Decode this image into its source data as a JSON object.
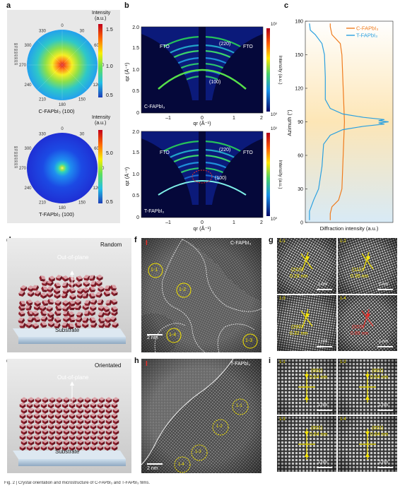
{
  "panel_labels": {
    "a": "a",
    "b": "b",
    "c": "c",
    "d": "d",
    "e": "e",
    "f": "f",
    "g": "g",
    "h": "h",
    "i": "i"
  },
  "panel_a": {
    "angles": [
      "0",
      "30",
      "60",
      "90",
      "120",
      "150",
      "180",
      "210",
      "240",
      "270",
      "300",
      "330"
    ],
    "radial_ticks": [
      "80",
      "70",
      "60",
      "50",
      "40",
      "30",
      "20",
      "10"
    ],
    "top": {
      "caption": "C-FAPbI₃ (100)",
      "cbar_title": "Intensity",
      "cbar_unit": "(a.u.)",
      "cbar_ticks": [
        "1.5",
        "1.0",
        "0.5"
      ]
    },
    "bottom": {
      "caption": "T-FAPbI₃ (100)",
      "cbar_title": "Intensity",
      "cbar_unit": "(a.u.)",
      "cbar_ticks": [
        "5.0",
        "0.5"
      ]
    }
  },
  "panel_b": {
    "ylabel": "qz (Å⁻¹)",
    "xlabel": "qr (Å⁻¹)",
    "yticks": [
      "0",
      "0.5",
      "1.0",
      "1.5",
      "2.0"
    ],
    "xticks": [
      "–1",
      "0",
      "1",
      "2"
    ],
    "cbar_label": "Intensity (a.u.)",
    "cbar_top": "10³",
    "cbar_bottom": "10⁰",
    "top": {
      "sample": "C-FAPbI₃",
      "ring_labels": [
        "FTO",
        "(220)",
        "FTO",
        "(100)"
      ]
    },
    "bottom": {
      "sample": "T-FAPbI₃",
      "ring_labels": [
        "FTO",
        "(220)",
        "FTO",
        "(100)"
      ]
    }
  },
  "chart_data": {
    "type": "line",
    "xlabel": "Diffraction intensity (a.u.)",
    "ylabel": "Azimuth (°)",
    "ylim": [
      0,
      180
    ],
    "yticks": [
      0,
      30,
      60,
      90,
      120,
      150,
      180
    ],
    "legend_position": "top-right",
    "series": [
      {
        "name": "C-FAPbI₃",
        "color": "#f07c1e",
        "points": [
          [
            0.3,
            2
          ],
          [
            0.3,
            8
          ],
          [
            0.32,
            14
          ],
          [
            0.4,
            20
          ],
          [
            0.44,
            30
          ],
          [
            0.45,
            50
          ],
          [
            0.46,
            70
          ],
          [
            0.47,
            90
          ],
          [
            0.46,
            110
          ],
          [
            0.45,
            130
          ],
          [
            0.44,
            150
          ],
          [
            0.42,
            160
          ],
          [
            0.32,
            168
          ],
          [
            0.3,
            175
          ],
          [
            0.3,
            178
          ]
        ]
      },
      {
        "name": "T-FAPbI₃",
        "color": "#2aa0e0",
        "points": [
          [
            0.05,
            2
          ],
          [
            0.05,
            10
          ],
          [
            0.1,
            20
          ],
          [
            0.16,
            30
          ],
          [
            0.2,
            50
          ],
          [
            0.22,
            70
          ],
          [
            0.3,
            78
          ],
          [
            0.45,
            83
          ],
          [
            0.7,
            86
          ],
          [
            0.95,
            88
          ],
          [
            0.88,
            89
          ],
          [
            1.0,
            90
          ],
          [
            0.88,
            91
          ],
          [
            0.95,
            92
          ],
          [
            0.7,
            94
          ],
          [
            0.45,
            97
          ],
          [
            0.3,
            102
          ],
          [
            0.24,
            110
          ],
          [
            0.24,
            130
          ],
          [
            0.23,
            150
          ],
          [
            0.2,
            160
          ],
          [
            0.12,
            168
          ],
          [
            0.06,
            172
          ],
          [
            0.05,
            178
          ]
        ]
      }
    ]
  },
  "panel_d": {
    "title": "Random",
    "out_of_plane": "Out-of-plane",
    "substrate": "Substrate"
  },
  "panel_e": {
    "title": "Orientated",
    "out_of_plane": "Out-of-plane",
    "substrate": "Substrate"
  },
  "panel_f": {
    "sample": "C-FAPbI₃",
    "marker": "I",
    "circles": [
      "1-1",
      "1-2",
      "1-3",
      "1-4"
    ],
    "scalebar": "2 nm"
  },
  "panel_g": {
    "cells": [
      {
        "id": "1-1",
        "plane": "(210)",
        "dist": "0.29 nm",
        "scalebar": "1 nm"
      },
      {
        "id": "1-2",
        "plane": "(111)",
        "dist": "0.35 nm",
        "scalebar": "1 nm"
      },
      {
        "id": "1-3",
        "plane": "(200)",
        "dist": "0.32 nm",
        "scalebar": "1 nm"
      },
      {
        "id": "1-4",
        "plane": "(003)",
        "dist": "0.89 nm",
        "scalebar": "1 nm"
      }
    ]
  },
  "panel_h": {
    "sample": "T-FAPbI₃",
    "marker": "I",
    "circles": [
      "1-1",
      "1-2",
      "1-3",
      "1-4"
    ],
    "scalebar": "2 nm"
  },
  "panel_i": {
    "cells": [
      {
        "id": "1-1",
        "plane": "(001)",
        "dist": "0.64 nm",
        "scalebar": "1 nm"
      },
      {
        "id": "1-2",
        "plane": "(001)",
        "dist": "0.64 nm",
        "scalebar": "1 nm"
      },
      {
        "id": "1-3",
        "plane": "(001)",
        "dist": "0.64 nm",
        "scalebar": "1 nm"
      },
      {
        "id": "1-4",
        "plane": "(001)",
        "dist": "0.64 nm",
        "scalebar": "1 nm"
      }
    ]
  },
  "caption": "Fig. 2 | Crystal orientation and microstructure of C-FAPbI₃ and T-FAPbI₃ films."
}
